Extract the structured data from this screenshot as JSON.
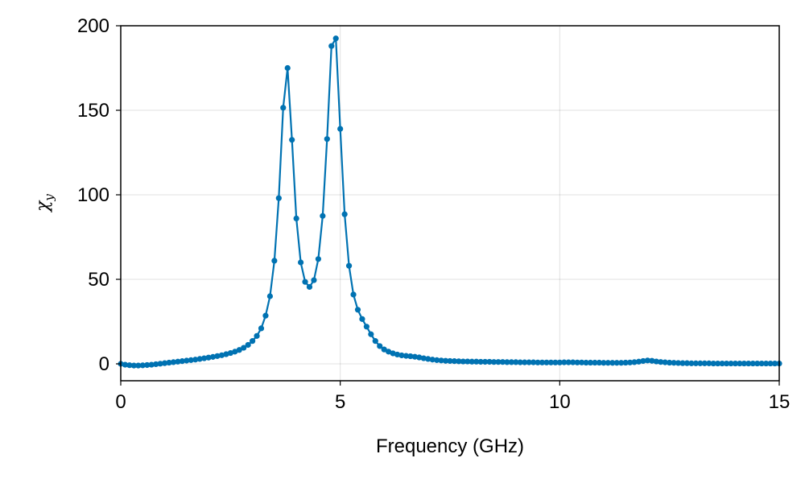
{
  "chart_data": {
    "type": "line",
    "title": "",
    "xlabel": "Frequency (GHz)",
    "ylabel": "χ_y",
    "ylabel_display": {
      "base": "χ",
      "subscript": "y"
    },
    "xlim": [
      0,
      15
    ],
    "ylim": [
      -10,
      200
    ],
    "xticks": [
      0,
      5,
      10,
      15
    ],
    "xtick_labels": [
      "0",
      "5",
      "10",
      "15"
    ],
    "yticks": [
      0,
      50,
      100,
      150,
      200
    ],
    "ytick_labels": [
      "0",
      "50",
      "100",
      "150",
      "200"
    ],
    "grid": true,
    "legend": "none",
    "color": "#0072b2",
    "series": [
      {
        "markers": true,
        "x": [
          0.0,
          0.1,
          0.2,
          0.3,
          0.4,
          0.5,
          0.6,
          0.7,
          0.8,
          0.9,
          1.0,
          1.1,
          1.2,
          1.3,
          1.4,
          1.5,
          1.6,
          1.7,
          1.8,
          1.9,
          2.0,
          2.1,
          2.2,
          2.3,
          2.4,
          2.5,
          2.6,
          2.7,
          2.8,
          2.9,
          3.0,
          3.1,
          3.2,
          3.3,
          3.4,
          3.5,
          3.6,
          3.7,
          3.8,
          3.9,
          4.0,
          4.1,
          4.2,
          4.3,
          4.4,
          4.5,
          4.6,
          4.7,
          4.8,
          4.9,
          5.0,
          5.1,
          5.2,
          5.3,
          5.4,
          5.5,
          5.6,
          5.7,
          5.8,
          5.9,
          6.0,
          6.1,
          6.2,
          6.3,
          6.4,
          6.5,
          6.6,
          6.7,
          6.8,
          6.9,
          7.0,
          7.1,
          7.2,
          7.3,
          7.4,
          7.5,
          7.6,
          7.7,
          7.8,
          7.9,
          8.0,
          8.1,
          8.2,
          8.3,
          8.4,
          8.5,
          8.6,
          8.7,
          8.8,
          8.9,
          9.0,
          9.1,
          9.2,
          9.3,
          9.4,
          9.5,
          9.6,
          9.7,
          9.8,
          9.9,
          10.0,
          10.1,
          10.2,
          10.3,
          10.4,
          10.5,
          10.6,
          10.7,
          10.8,
          10.9,
          11.0,
          11.1,
          11.2,
          11.3,
          11.4,
          11.5,
          11.6,
          11.7,
          11.8,
          11.9,
          12.0,
          12.1,
          12.2,
          12.3,
          12.4,
          12.5,
          12.6,
          12.7,
          12.8,
          12.9,
          13.0,
          13.1,
          13.2,
          13.3,
          13.4,
          13.5,
          13.6,
          13.7,
          13.8,
          13.9,
          14.0,
          14.1,
          14.2,
          14.3,
          14.4,
          14.5,
          14.6,
          14.7,
          14.8,
          14.9,
          15.0
        ],
        "y": [
          0.0,
          -0.5,
          -0.8,
          -1.0,
          -1.0,
          -0.9,
          -0.7,
          -0.5,
          -0.2,
          0.1,
          0.4,
          0.7,
          1.0,
          1.3,
          1.6,
          1.9,
          2.2,
          2.5,
          2.9,
          3.3,
          3.7,
          4.1,
          4.6,
          5.1,
          5.7,
          6.4,
          7.2,
          8.2,
          9.5,
          11.2,
          13.5,
          16.5,
          21.0,
          28.5,
          40.0,
          61.0,
          98.0,
          151.5,
          175.0,
          132.5,
          86.0,
          60.0,
          48.5,
          45.5,
          49.5,
          62.0,
          87.5,
          133.0,
          188.0,
          192.5,
          139.0,
          88.5,
          58.0,
          41.0,
          32.0,
          26.5,
          22.0,
          17.5,
          13.5,
          10.5,
          8.5,
          7.2,
          6.2,
          5.5,
          5.0,
          4.7,
          4.5,
          4.2,
          3.8,
          3.3,
          2.9,
          2.5,
          2.2,
          2.0,
          1.8,
          1.7,
          1.6,
          1.5,
          1.4,
          1.4,
          1.3,
          1.3,
          1.2,
          1.2,
          1.2,
          1.1,
          1.1,
          1.1,
          1.0,
          1.0,
          1.0,
          0.9,
          0.9,
          0.9,
          0.9,
          0.8,
          0.8,
          0.8,
          0.8,
          0.8,
          0.8,
          0.9,
          0.9,
          0.9,
          0.8,
          0.8,
          0.7,
          0.7,
          0.7,
          0.7,
          0.6,
          0.6,
          0.6,
          0.6,
          0.6,
          0.7,
          0.8,
          1.0,
          1.3,
          1.7,
          2.0,
          1.8,
          1.4,
          1.1,
          0.9,
          0.7,
          0.6,
          0.5,
          0.4,
          0.4,
          0.3,
          0.3,
          0.3,
          0.3,
          0.3,
          0.2,
          0.2,
          0.2,
          0.2,
          0.2,
          0.2,
          0.2,
          0.2,
          0.2,
          0.2,
          0.2,
          0.2,
          0.2,
          0.2,
          0.2,
          0.2
        ]
      }
    ]
  }
}
